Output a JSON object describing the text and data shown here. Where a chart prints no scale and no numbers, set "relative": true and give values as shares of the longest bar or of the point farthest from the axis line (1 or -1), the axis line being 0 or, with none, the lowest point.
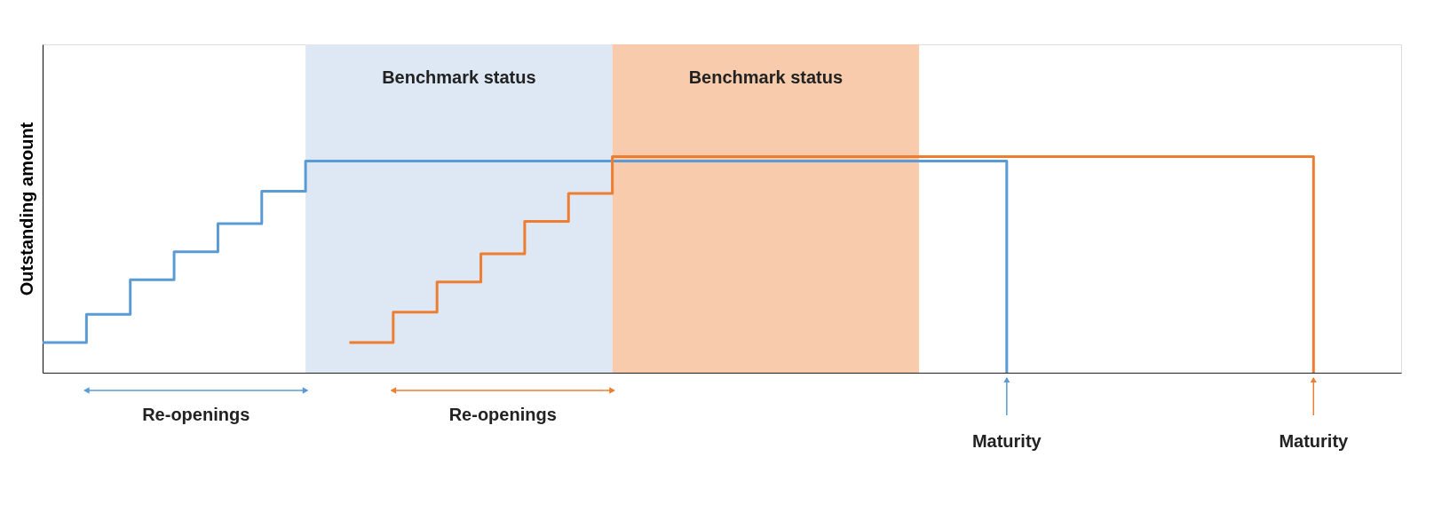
{
  "chart_data": {
    "type": "step",
    "relative": true,
    "ylabel": "Outstanding amount",
    "categories": [
      null,
      null,
      null,
      null,
      null,
      null,
      null,
      null,
      null,
      null,
      null,
      null,
      null,
      null,
      null,
      null,
      null,
      null,
      null,
      null,
      null,
      null,
      null,
      null,
      null,
      null,
      null,
      null,
      null,
      null,
      null,
      null
    ],
    "series": [
      {
        "color": "#5b9bd5",
        "values": [
          0.14,
          0.27,
          0.43,
          0.56,
          0.69,
          0.84,
          0.98,
          0.98,
          0.98,
          0.98,
          0.98,
          0.98,
          0.98,
          0.98,
          0.98,
          0.98,
          0.98,
          0.98,
          0.98,
          0.98,
          0.98,
          0.98,
          0,
          null,
          null,
          null,
          null,
          null,
          null,
          null,
          null,
          null
        ]
      },
      {
        "color": "#ed7d31",
        "values": [
          null,
          null,
          null,
          null,
          null,
          null,
          null,
          0.14,
          0.28,
          0.42,
          0.55,
          0.7,
          0.83,
          1,
          1,
          1,
          1,
          1,
          1,
          1,
          1,
          1,
          1,
          1,
          1,
          1,
          1,
          1,
          1,
          0,
          null,
          null
        ]
      }
    ],
    "annotations": [
      "Benchmark status",
      "Benchmark status",
      "Re-openings",
      "Re-openings",
      "Maturity",
      "Maturity"
    ],
    "grid": false
  }
}
